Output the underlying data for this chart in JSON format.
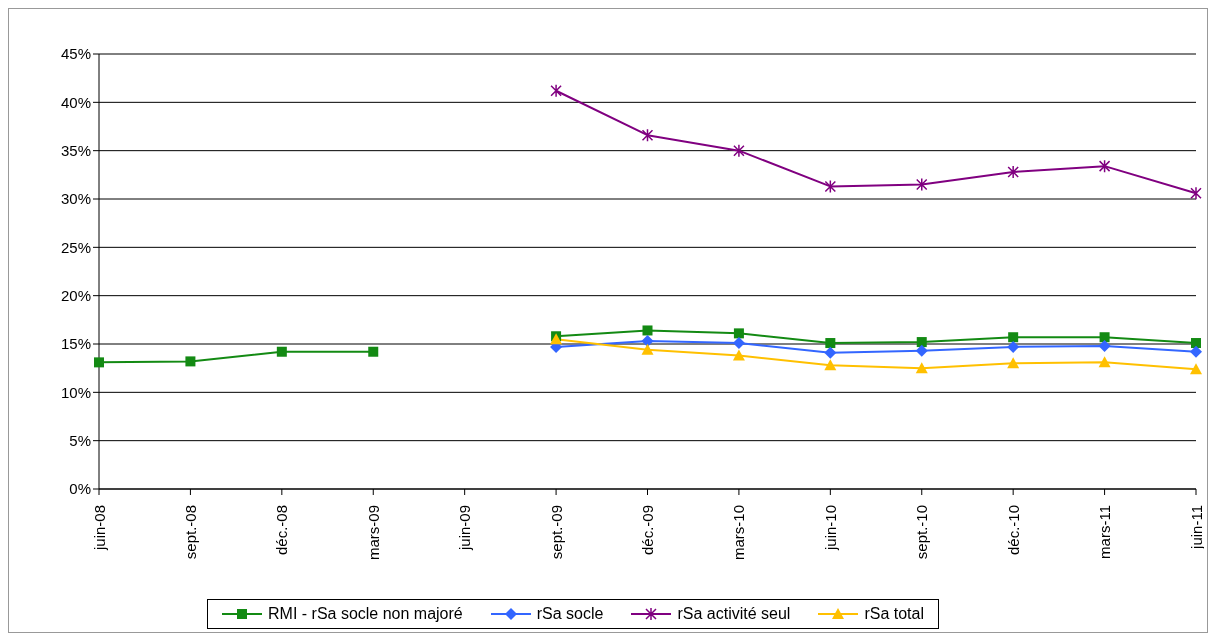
{
  "chart_data": {
    "type": "line",
    "categories": [
      "juin-08",
      "sept.-08",
      "déc.-08",
      "mars-09",
      "juin-09",
      "sept.-09",
      "déc.-09",
      "mars-10",
      "juin-10",
      "sept.-10",
      "déc.-10",
      "mars-11",
      "juin-11"
    ],
    "series": [
      {
        "name": "RMI - rSa socle non majoré",
        "color": "#138a13",
        "marker": "square",
        "values": [
          13.1,
          13.2,
          14.2,
          14.2,
          null,
          15.8,
          16.4,
          16.1,
          15.1,
          15.2,
          15.7,
          15.7,
          15.1
        ]
      },
      {
        "name": "rSa socle",
        "color": "#3366ff",
        "marker": "diamond",
        "values": [
          null,
          null,
          null,
          null,
          null,
          14.7,
          15.3,
          15.1,
          14.1,
          14.3,
          14.7,
          14.8,
          14.2
        ]
      },
      {
        "name": "rSa activité seul",
        "color": "#800080",
        "marker": "cross",
        "values": [
          null,
          null,
          null,
          null,
          null,
          41.2,
          36.6,
          35.0,
          31.3,
          31.5,
          32.8,
          33.4,
          30.6
        ]
      },
      {
        "name": "rSa total",
        "color": "#ffc000",
        "marker": "triangle",
        "values": [
          null,
          null,
          null,
          null,
          null,
          15.5,
          14.4,
          13.8,
          12.8,
          12.5,
          13.0,
          13.1,
          12.4
        ]
      }
    ],
    "ylim": [
      0,
      45
    ],
    "yticks": [
      {
        "value": 0,
        "label": "0%"
      },
      {
        "value": 5,
        "label": "5%"
      },
      {
        "value": 10,
        "label": "10%"
      },
      {
        "value": 15,
        "label": "15%"
      },
      {
        "value": 20,
        "label": "20%"
      },
      {
        "value": 25,
        "label": "25%"
      },
      {
        "value": 30,
        "label": "30%"
      },
      {
        "value": 35,
        "label": "35%"
      },
      {
        "value": 40,
        "label": "40%"
      },
      {
        "value": 45,
        "label": "45%"
      }
    ],
    "grid": "y",
    "legend": "bottom"
  }
}
